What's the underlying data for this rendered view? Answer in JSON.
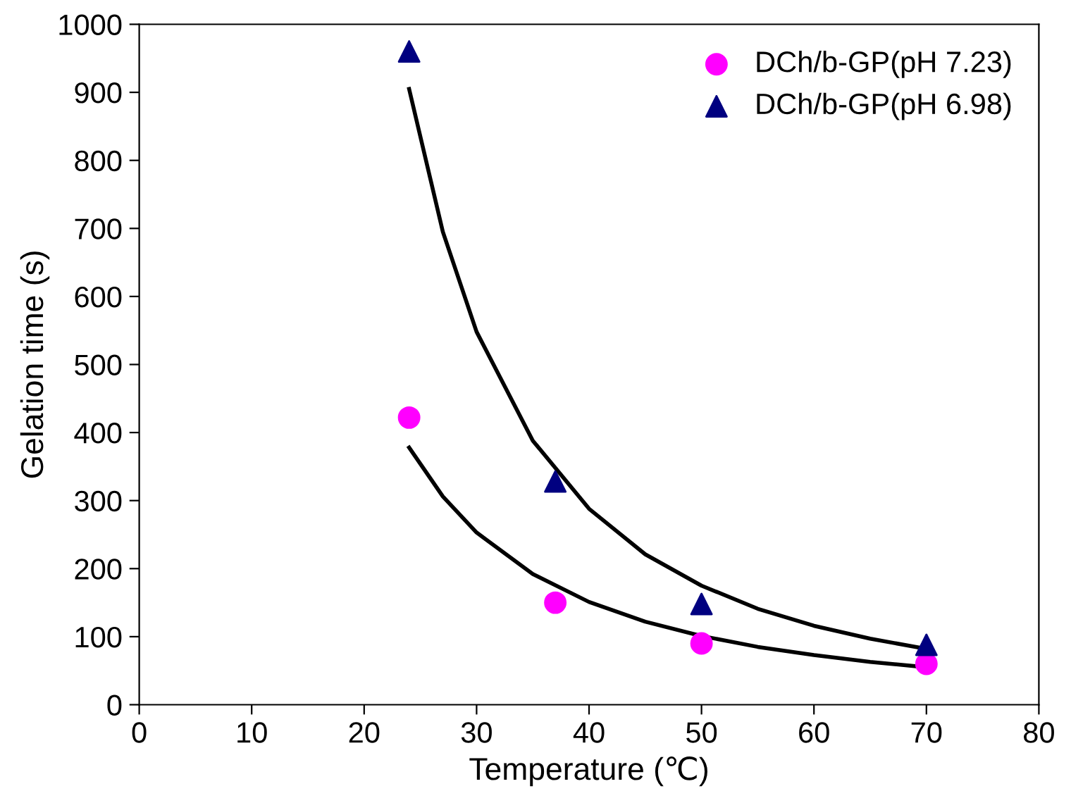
{
  "chart_data": {
    "type": "scatter",
    "xlabel": "Temperature (℃)",
    "ylabel": "Gelation time (s)",
    "xlim": [
      0,
      80
    ],
    "xticks": [
      0,
      10,
      20,
      30,
      40,
      50,
      60,
      70,
      80
    ],
    "ylim": [
      0,
      1000
    ],
    "yticks": [
      0,
      100,
      200,
      300,
      400,
      500,
      600,
      700,
      800,
      900,
      1000
    ],
    "grid": false,
    "legend": "top right",
    "series": [
      {
        "name": "DCh/b-GP(pH 7.23)",
        "marker": "circle",
        "color": "#ff00ff",
        "x": [
          24,
          37,
          50,
          70
        ],
        "values": [
          422,
          150,
          90,
          60
        ]
      },
      {
        "name": "DCh/b-GP(pH 6.98)",
        "marker": "triangle",
        "color": "#000080",
        "x": [
          24,
          37,
          50,
          70
        ],
        "values": [
          960,
          328,
          148,
          88
        ]
      },
      {
        "type": "line",
        "marker": "none",
        "line_style": "solid",
        "color": "#000000",
        "x": [
          24,
          27,
          30,
          35,
          40,
          45,
          50,
          55,
          60,
          65,
          70
        ],
        "values": [
          378,
          306,
          253,
          192,
          151,
          122,
          101,
          85,
          73,
          63,
          55
        ]
      },
      {
        "type": "line",
        "marker": "none",
        "line_style": "solid",
        "color": "#000000",
        "x": [
          24,
          27,
          30,
          35,
          40,
          45,
          50,
          55,
          60,
          65,
          70
        ],
        "values": [
          905,
          695,
          548,
          388,
          288,
          221,
          175,
          141,
          116,
          97,
          82
        ]
      }
    ]
  }
}
